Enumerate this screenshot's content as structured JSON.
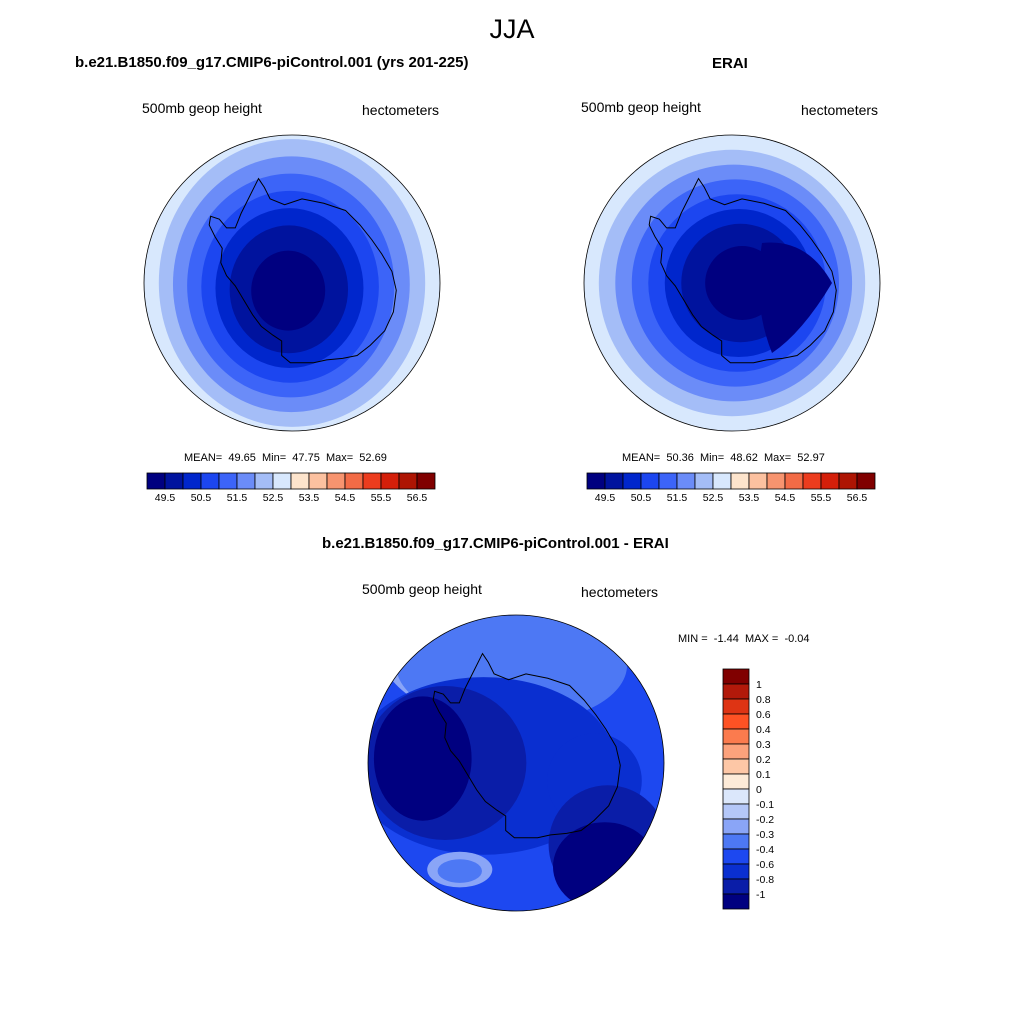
{
  "main_title": "JJA",
  "chart_data": [
    {
      "type": "heatmap",
      "projection": "south-polar-stereographic",
      "title": "b.e21.B1850.f09_g17.CMIP6-piControl.001 (yrs 201-225)",
      "left_label": "500mb geop height",
      "right_label": "hectometers",
      "stats": {
        "mean_label": "MEAN=",
        "mean": "49.65",
        "min_label": "Min=",
        "min": "47.75",
        "max_label": "Max=",
        "max": "52.69"
      },
      "colorbar": {
        "levels": [
          49,
          49.5,
          50,
          50.5,
          51,
          51.5,
          52,
          52.5,
          53,
          53.5,
          54,
          54.5,
          55,
          55.5,
          56,
          56.5,
          57
        ],
        "tick_labels": [
          "49.5",
          "50.5",
          "51.5",
          "52.5",
          "53.5",
          "54.5",
          "55.5",
          "56.5"
        ],
        "colors": [
          "#000080",
          "#00139e",
          "#0026cc",
          "#1c46f0",
          "#3c64f8",
          "#6b8cf8",
          "#a4bdf7",
          "#d8e8fd",
          "#fde4cc",
          "#fcc1a0",
          "#f7946f",
          "#f26b46",
          "#ec3c1e",
          "#d41f0a",
          "#ae1503",
          "#800000"
        ]
      },
      "field": {
        "center": [
          -0.03,
          0.06
        ],
        "scale": [
          1.0,
          1.08
        ],
        "ring_levels": [
          52.5,
          52,
          51.5,
          51,
          50.5,
          50,
          49.5
        ]
      }
    },
    {
      "type": "heatmap",
      "projection": "south-polar-stereographic",
      "title": "ERAI",
      "left_label": "500mb geop height",
      "right_label": "hectometers",
      "stats": {
        "mean_label": "MEAN=",
        "mean": "50.36",
        "min_label": "Min=",
        "min": "48.62",
        "max_label": "Max=",
        "max": "52.97"
      },
      "colorbar": {
        "levels": [
          49,
          49.5,
          50,
          50.5,
          51,
          51.5,
          52,
          52.5,
          53,
          53.5,
          54,
          54.5,
          55,
          55.5,
          56,
          56.5,
          57
        ],
        "tick_labels": [
          "49.5",
          "50.5",
          "51.5",
          "52.5",
          "53.5",
          "54.5",
          "55.5",
          "56.5"
        ],
        "colors": [
          "#000080",
          "#00139e",
          "#0026cc",
          "#1c46f0",
          "#3c64f8",
          "#6b8cf8",
          "#a4bdf7",
          "#d8e8fd",
          "#fde4cc",
          "#fcc1a0",
          "#f7946f",
          "#f26b46",
          "#ec3c1e",
          "#d41f0a",
          "#ae1503",
          "#800000"
        ]
      },
      "field": {
        "center": [
          0.08,
          0.0
        ],
        "scale": [
          1.0,
          1.0
        ],
        "ring_levels": [
          52.5,
          52,
          51.5,
          51,
          50.5,
          50,
          49.5
        ]
      }
    },
    {
      "type": "heatmap",
      "projection": "south-polar-stereographic",
      "title": "b.e21.B1850.f09_g17.CMIP6-piControl.001 - ERAI",
      "left_label": "500mb geop height",
      "right_label": "hectometers",
      "stats": {
        "min_label": "MIN =",
        "min": "-1.44",
        "max_label": "MAX =",
        "max": "-0.04"
      },
      "colorbar": {
        "levels": [
          -1,
          -0.8,
          -0.6,
          -0.4,
          -0.3,
          -0.2,
          -0.1,
          0,
          0.1,
          0.2,
          0.3,
          0.4,
          0.6,
          0.8,
          1
        ],
        "tick_labels": [
          "1",
          "0.8",
          "0.6",
          "0.4",
          "0.3",
          "0.2",
          "0.1",
          "0",
          "-0.1",
          "-0.2",
          "-0.3",
          "-0.4",
          "-0.6",
          "-0.8",
          "-1"
        ],
        "colors": [
          "#800000",
          "#b2190a",
          "#de3414",
          "#fe5224",
          "#fb7b4e",
          "#fca27c",
          "#fdc7a6",
          "#fdebd8",
          "#dbe7fb",
          "#b4c7f8",
          "#8aa5f7",
          "#4d78f4",
          "#1d48f0",
          "#0a2fd0",
          "#0a1da8",
          "#000080"
        ]
      },
      "field": {
        "background_level": -0.4,
        "blobs": [
          {
            "center": [
              -0.08,
              -0.82
            ],
            "radii": [
              0.86,
              0.55
            ],
            "level": -0.2
          },
          {
            "center": [
              -0.03,
              -0.66
            ],
            "radii": [
              0.78,
              0.4
            ],
            "level": -0.3
          },
          {
            "center": [
              -0.22,
              0.02
            ],
            "radii": [
              0.9,
              0.6
            ],
            "level": -0.6
          },
          {
            "center": [
              -0.48,
              0.0
            ],
            "radii": [
              0.55,
              0.52
            ],
            "level": -0.8
          },
          {
            "center": [
              -0.63,
              -0.03
            ],
            "radii": [
              0.33,
              0.42
            ],
            "level": -1
          },
          {
            "center": [
              0.53,
              0.12
            ],
            "radii": [
              0.32,
              0.32
            ],
            "level": -0.6
          },
          {
            "center": [
              0.62,
              0.55
            ],
            "radii": [
              0.4,
              0.4
            ],
            "level": -0.8
          },
          {
            "center": [
              0.6,
              0.7
            ],
            "radii": [
              0.35,
              0.3
            ],
            "level": -1
          },
          {
            "center": [
              -0.38,
              0.72
            ],
            "radii": [
              0.22,
              0.12
            ],
            "level": -0.2
          },
          {
            "center": [
              -0.38,
              0.73
            ],
            "radii": [
              0.15,
              0.08
            ],
            "level": -0.3
          }
        ]
      }
    }
  ]
}
